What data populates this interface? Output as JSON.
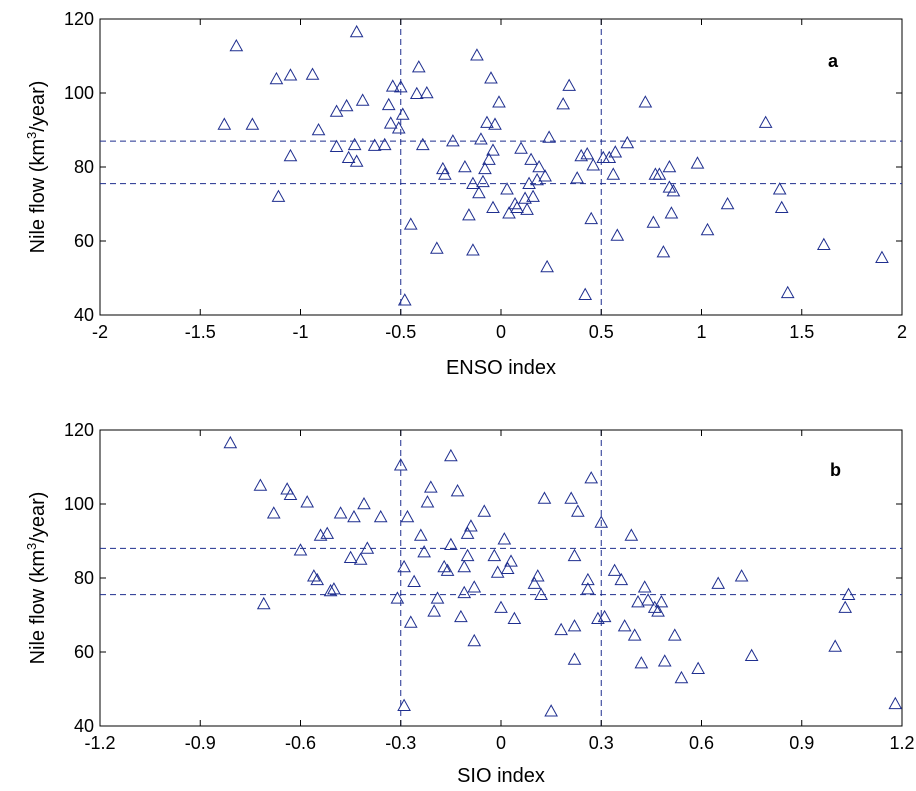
{
  "chart_data": [
    {
      "type": "scatter",
      "panel_label": "a",
      "xlabel": "ENSO index",
      "ylabel_main": "Nile flow (km",
      "ylabel_sup": "3",
      "ylabel_end": "/year)",
      "xlim": [
        -2,
        2
      ],
      "ylim": [
        40,
        120
      ],
      "xticks": [
        -2,
        -1.5,
        -1,
        -0.5,
        0,
        0.5,
        1,
        1.5,
        2
      ],
      "xtick_labels": [
        "-2",
        "-1.5",
        "-1",
        "-0.5",
        "0",
        "0.5",
        "1",
        "1.5",
        "2"
      ],
      "yticks": [
        40,
        60,
        80,
        100,
        120
      ],
      "ytick_labels": [
        "40",
        "60",
        "80",
        "100",
        "120"
      ],
      "hlines": [
        87,
        75.5
      ],
      "vlines": [
        -0.5,
        0.5
      ],
      "marker": "triangle",
      "color": "#1f2f8f",
      "points": [
        [
          -1.38,
          91.5
        ],
        [
          -1.32,
          112.7
        ],
        [
          -1.24,
          91.5
        ],
        [
          -1.12,
          103.8
        ],
        [
          -1.11,
          72
        ],
        [
          -1.05,
          83
        ],
        [
          -1.05,
          104.8
        ],
        [
          -0.94,
          105
        ],
        [
          -0.91,
          90
        ],
        [
          -0.82,
          95
        ],
        [
          -0.82,
          85.5
        ],
        [
          -0.77,
          96.5
        ],
        [
          -0.76,
          82.5
        ],
        [
          -0.73,
          86
        ],
        [
          -0.72,
          81.5
        ],
        [
          -0.72,
          116.5
        ],
        [
          -0.69,
          98
        ],
        [
          -0.63,
          85.8
        ],
        [
          -0.58,
          86
        ],
        [
          -0.56,
          96.8
        ],
        [
          -0.55,
          91.8
        ],
        [
          -0.54,
          101.8
        ],
        [
          -0.51,
          90.5
        ],
        [
          -0.5,
          101.6
        ],
        [
          -0.49,
          94.2
        ],
        [
          -0.48,
          44
        ],
        [
          -0.45,
          64.5
        ],
        [
          -0.42,
          99.8
        ],
        [
          -0.41,
          107
        ],
        [
          -0.39,
          86
        ],
        [
          -0.37,
          100
        ],
        [
          -0.32,
          58
        ],
        [
          -0.29,
          79.5
        ],
        [
          -0.28,
          78
        ],
        [
          -0.24,
          87
        ],
        [
          -0.18,
          80
        ],
        [
          -0.16,
          67
        ],
        [
          -0.14,
          57.5
        ],
        [
          -0.14,
          75.5
        ],
        [
          -0.12,
          110.2
        ],
        [
          -0.11,
          73
        ],
        [
          -0.1,
          87.5
        ],
        [
          -0.09,
          76
        ],
        [
          -0.08,
          79.5
        ],
        [
          -0.07,
          92
        ],
        [
          -0.06,
          82
        ],
        [
          -0.05,
          104
        ],
        [
          -0.04,
          69
        ],
        [
          -0.04,
          84.5
        ],
        [
          -0.03,
          91.5
        ],
        [
          -0.01,
          97.5
        ],
        [
          0.03,
          74
        ],
        [
          0.04,
          67.5
        ],
        [
          0.07,
          70
        ],
        [
          0.08,
          69
        ],
        [
          0.1,
          85
        ],
        [
          0.12,
          71.5
        ],
        [
          0.13,
          68.5
        ],
        [
          0.14,
          75.5
        ],
        [
          0.15,
          82
        ],
        [
          0.16,
          72
        ],
        [
          0.18,
          76.5
        ],
        [
          0.19,
          80
        ],
        [
          0.22,
          77.5
        ],
        [
          0.23,
          53
        ],
        [
          0.24,
          88
        ],
        [
          0.31,
          97
        ],
        [
          0.34,
          102
        ],
        [
          0.38,
          77
        ],
        [
          0.4,
          83
        ],
        [
          0.42,
          45.5
        ],
        [
          0.43,
          83.5
        ],
        [
          0.45,
          66
        ],
        [
          0.46,
          80.5
        ],
        [
          0.51,
          82.5
        ],
        [
          0.54,
          82.5
        ],
        [
          0.56,
          78
        ],
        [
          0.57,
          84
        ],
        [
          0.58,
          61.5
        ],
        [
          0.63,
          86.5
        ],
        [
          0.72,
          97.5
        ],
        [
          0.76,
          65
        ],
        [
          0.77,
          78
        ],
        [
          0.79,
          78
        ],
        [
          0.81,
          57
        ],
        [
          0.84,
          74.5
        ],
        [
          0.84,
          80
        ],
        [
          0.85,
          67.5
        ],
        [
          0.86,
          73.5
        ],
        [
          0.98,
          81
        ],
        [
          1.03,
          63
        ],
        [
          1.13,
          70
        ],
        [
          1.32,
          92
        ],
        [
          1.39,
          74
        ],
        [
          1.4,
          69
        ],
        [
          1.43,
          46
        ],
        [
          1.61,
          59
        ],
        [
          1.9,
          55.5
        ]
      ]
    },
    {
      "type": "scatter",
      "panel_label": "b",
      "xlabel": "SIO index",
      "ylabel_main": "Nile flow (km",
      "ylabel_sup": "3",
      "ylabel_end": "/year)",
      "xlim": [
        -1.2,
        1.2
      ],
      "ylim": [
        40,
        120
      ],
      "xticks": [
        -1.2,
        -0.9,
        -0.6,
        -0.3,
        0,
        0.3,
        0.6,
        0.9,
        1.2
      ],
      "xtick_labels": [
        "-1.2",
        "-0.9",
        "-0.6",
        "-0.3",
        "0",
        "0.3",
        "0.6",
        "0.9",
        "1.2"
      ],
      "yticks": [
        40,
        60,
        80,
        100,
        120
      ],
      "ytick_labels": [
        "40",
        "60",
        "80",
        "100",
        "120"
      ],
      "hlines": [
        88,
        75.5
      ],
      "vlines": [
        -0.3,
        0.3
      ],
      "marker": "triangle",
      "color": "#1f2f8f",
      "points": [
        [
          -0.81,
          116.5
        ],
        [
          -0.72,
          105
        ],
        [
          -0.71,
          73
        ],
        [
          -0.68,
          97.5
        ],
        [
          -0.64,
          104
        ],
        [
          -0.63,
          102.5
        ],
        [
          -0.6,
          87.5
        ],
        [
          -0.58,
          100.5
        ],
        [
          -0.56,
          80.5
        ],
        [
          -0.55,
          79.5
        ],
        [
          -0.54,
          91.5
        ],
        [
          -0.52,
          92
        ],
        [
          -0.51,
          76.5
        ],
        [
          -0.5,
          77
        ],
        [
          -0.48,
          97.5
        ],
        [
          -0.45,
          85.5
        ],
        [
          -0.44,
          96.5
        ],
        [
          -0.42,
          85
        ],
        [
          -0.41,
          100
        ],
        [
          -0.4,
          88
        ],
        [
          -0.36,
          96.5
        ],
        [
          -0.31,
          74.5
        ],
        [
          -0.3,
          110.5
        ],
        [
          -0.29,
          83
        ],
        [
          -0.29,
          45.5
        ],
        [
          -0.28,
          96.5
        ],
        [
          -0.27,
          68
        ],
        [
          -0.26,
          79
        ],
        [
          -0.24,
          91.5
        ],
        [
          -0.23,
          87
        ],
        [
          -0.22,
          100.5
        ],
        [
          -0.21,
          104.5
        ],
        [
          -0.2,
          71
        ],
        [
          -0.19,
          74.5
        ],
        [
          -0.17,
          83
        ],
        [
          -0.16,
          82
        ],
        [
          -0.15,
          89
        ],
        [
          -0.15,
          113
        ],
        [
          -0.13,
          103.5
        ],
        [
          -0.12,
          69.5
        ],
        [
          -0.11,
          83
        ],
        [
          -0.11,
          76
        ],
        [
          -0.1,
          86
        ],
        [
          -0.1,
          92
        ],
        [
          -0.09,
          94
        ],
        [
          -0.08,
          63
        ],
        [
          -0.08,
          77.5
        ],
        [
          -0.05,
          98
        ],
        [
          -0.02,
          86
        ],
        [
          -0.01,
          81.5
        ],
        [
          0,
          72
        ],
        [
          0.01,
          90.5
        ],
        [
          0.02,
          82.5
        ],
        [
          0.03,
          84.5
        ],
        [
          0.04,
          69
        ],
        [
          0.1,
          78.5
        ],
        [
          0.11,
          80.5
        ],
        [
          0.12,
          75.5
        ],
        [
          0.13,
          101.5
        ],
        [
          0.15,
          44
        ],
        [
          0.18,
          66
        ],
        [
          0.21,
          101.5
        ],
        [
          0.22,
          67
        ],
        [
          0.22,
          58
        ],
        [
          0.22,
          86
        ],
        [
          0.23,
          98
        ],
        [
          0.26,
          77
        ],
        [
          0.26,
          79.5
        ],
        [
          0.27,
          107
        ],
        [
          0.29,
          69
        ],
        [
          0.3,
          95
        ],
        [
          0.31,
          69.5
        ],
        [
          0.34,
          82
        ],
        [
          0.36,
          79.5
        ],
        [
          0.37,
          67
        ],
        [
          0.39,
          91.5
        ],
        [
          0.4,
          64.5
        ],
        [
          0.41,
          73.5
        ],
        [
          0.42,
          57
        ],
        [
          0.43,
          77.5
        ],
        [
          0.44,
          74
        ],
        [
          0.46,
          72
        ],
        [
          0.47,
          71
        ],
        [
          0.48,
          73.5
        ],
        [
          0.49,
          57.5
        ],
        [
          0.52,
          64.5
        ],
        [
          0.54,
          53
        ],
        [
          0.59,
          55.5
        ],
        [
          0.65,
          78.5
        ],
        [
          0.72,
          80.5
        ],
        [
          0.75,
          59
        ],
        [
          1.0,
          61.5
        ],
        [
          1.03,
          72
        ],
        [
          1.04,
          75.5
        ],
        [
          1.18,
          46
        ]
      ]
    }
  ]
}
